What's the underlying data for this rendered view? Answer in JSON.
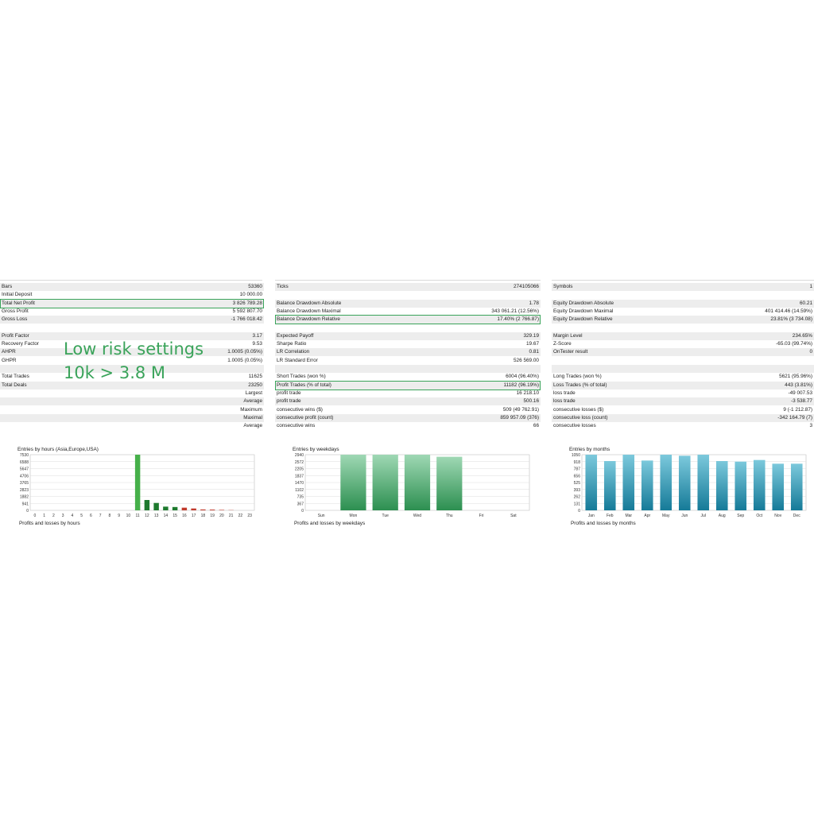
{
  "overlay": {
    "line1": "Low risk settings",
    "line2": "10k > 3.8 M"
  },
  "col1": [
    {
      "label": "Bars",
      "value": "53360"
    },
    {
      "label": "Initial Deposit",
      "value": "10 000.00"
    },
    {
      "label": "Total Net Profit",
      "value": "3 826 789.28",
      "highlight": true
    },
    {
      "label": "Gross Profit",
      "value": "5 592 807.70"
    },
    {
      "label": "Gross Loss",
      "value": "-1 766 018.42"
    },
    {
      "label": "",
      "value": ""
    },
    {
      "label": "Profit Factor",
      "value": "3.17"
    },
    {
      "label": "Recovery Factor",
      "value": "9.53"
    },
    {
      "label": "AHPR",
      "value": "1.0005 (0.05%)"
    },
    {
      "label": "GHPR",
      "value": "1.0005 (0.05%)"
    },
    {
      "label": "",
      "value": ""
    },
    {
      "label": "Total Trades",
      "value": "11625"
    },
    {
      "label": "Total Deals",
      "value": "23250"
    },
    {
      "label": "",
      "value": "Largest",
      "rightlabel": true
    },
    {
      "label": "",
      "value": "Average",
      "rightlabel": true
    },
    {
      "label": "",
      "value": "Maximum",
      "rightlabel": true
    },
    {
      "label": "",
      "value": "Maximal",
      "rightlabel": true
    },
    {
      "label": "",
      "value": "Average",
      "rightlabel": true
    }
  ],
  "col2": [
    {
      "label": "Ticks",
      "value": "274105066"
    },
    {
      "label": "",
      "value": ""
    },
    {
      "label": "Balance Drawdown Absolute",
      "value": "1.78"
    },
    {
      "label": "Balance Drawdown Maximal",
      "value": "343 061.21 (12.56%)"
    },
    {
      "label": "Balance Drawdown Relative",
      "value": "17.40% (2 766.87)",
      "highlight": true
    },
    {
      "label": "",
      "value": ""
    },
    {
      "label": "Expected Payoff",
      "value": "329.19"
    },
    {
      "label": "Sharpe Ratio",
      "value": "19.67"
    },
    {
      "label": "LR Correlation",
      "value": "0.81"
    },
    {
      "label": "LR Standard Error",
      "value": "526 569.00"
    },
    {
      "label": "",
      "value": ""
    },
    {
      "label": "Short Trades (won %)",
      "value": "6004 (96.40%)"
    },
    {
      "label": "Profit Trades (% of total)",
      "value": "11182 (96.19%)",
      "highlight": true
    },
    {
      "label": "profit trade",
      "value": "16 218.10"
    },
    {
      "label": "profit trade",
      "value": "500.16"
    },
    {
      "label": "consecutive wins ($)",
      "value": "509 (49 762.91)"
    },
    {
      "label": "consecutive profit (count)",
      "value": "859 957.09 (376)"
    },
    {
      "label": "consecutive wins",
      "value": "66"
    }
  ],
  "col3": [
    {
      "label": "Symbols",
      "value": "1"
    },
    {
      "label": "",
      "value": ""
    },
    {
      "label": "Equity Drawdown Absolute",
      "value": "60.21"
    },
    {
      "label": "Equity Drawdown Maximal",
      "value": "401 414.46 (14.59%)"
    },
    {
      "label": "Equity Drawdown Relative",
      "value": "23.81% (3 734.08)"
    },
    {
      "label": "",
      "value": ""
    },
    {
      "label": "Margin Level",
      "value": "234.65%"
    },
    {
      "label": "Z-Score",
      "value": "-65.03 (99.74%)"
    },
    {
      "label": "OnTester result",
      "value": "0"
    },
    {
      "label": "",
      "value": ""
    },
    {
      "label": "",
      "value": ""
    },
    {
      "label": "Long Trades (won %)",
      "value": "5621 (95.96%)"
    },
    {
      "label": "Loss Trades (% of total)",
      "value": "443 (3.81%)"
    },
    {
      "label": "loss trade",
      "value": "-49 007.53"
    },
    {
      "label": "loss trade",
      "value": "-3 538.77"
    },
    {
      "label": "consecutive losses ($)",
      "value": "9 (-1 212.87)"
    },
    {
      "label": "consecutive loss (count)",
      "value": "-342 164.79 (7)"
    },
    {
      "label": "consecutive losses",
      "value": "3"
    }
  ],
  "chart_data": [
    {
      "type": "bar",
      "title": "Entries by hours (Asia,Europe,USA)",
      "subtitle": "Profits and losses by hours",
      "categories": [
        "0",
        "1",
        "2",
        "3",
        "4",
        "5",
        "6",
        "7",
        "8",
        "9",
        "10",
        "11",
        "12",
        "13",
        "14",
        "15",
        "16",
        "17",
        "18",
        "19",
        "20",
        "21",
        "22",
        "23"
      ],
      "values": [
        0,
        0,
        0,
        0,
        0,
        0,
        0,
        0,
        0,
        0,
        0,
        7530,
        1400,
        1000,
        500,
        450,
        360,
        250,
        120,
        100,
        60,
        30,
        0,
        0
      ],
      "yticks": [
        "7530",
        "6588",
        "5647",
        "4706",
        "3765",
        "2823",
        "1882",
        "941",
        "0"
      ],
      "ylim": [
        0,
        7530
      ],
      "colors": [
        "#1e7a2e",
        "#1e7a2e",
        "#1e7a2e",
        "#1e7a2e",
        "#1e7a2e",
        "#1e7a2e",
        "#1e7a2e",
        "#1e7a2e",
        "#1e7a2e",
        "#1e7a2e",
        "#1e7a2e",
        "#46b04a",
        "#1e7a2e",
        "#1e7a2e",
        "#1e7a2e",
        "#1e7a2e",
        "#c0392b",
        "#c0392b",
        "#c0392b",
        "#c0392b",
        "#c0392b",
        "#c0392b",
        "#c0392b",
        "#c0392b"
      ],
      "grid": true
    },
    {
      "type": "bar",
      "title": "Entries by weekdays",
      "subtitle": "Profits and losses by weekdays",
      "categories": [
        "Sun",
        "Mon",
        "Tue",
        "Wed",
        "Thu",
        "Fri",
        "Sat"
      ],
      "values": [
        0,
        2940,
        2940,
        2940,
        2830,
        0,
        0
      ],
      "yticks": [
        "2940",
        "2572",
        "2205",
        "1837",
        "1470",
        "1102",
        "735",
        "367",
        "0"
      ],
      "ylim": [
        0,
        2940
      ],
      "colors": [
        "#3aa362"
      ],
      "grid": true
    },
    {
      "type": "bar",
      "title": "Entries by months",
      "subtitle": "Profits and losses by months",
      "categories": [
        "Jan",
        "Feb",
        "Mar",
        "Apr",
        "May",
        "Jun",
        "Jul",
        "Aug",
        "Sep",
        "Oct",
        "Nov",
        "Dec"
      ],
      "values": [
        1050,
        930,
        1050,
        940,
        1050,
        1030,
        1050,
        930,
        920,
        950,
        880,
        880
      ],
      "yticks": [
        "1050",
        "918",
        "787",
        "656",
        "525",
        "393",
        "262",
        "131",
        "0"
      ],
      "ylim": [
        0,
        1050
      ],
      "colors": [
        "#2a9bb8"
      ],
      "grid": true
    }
  ]
}
